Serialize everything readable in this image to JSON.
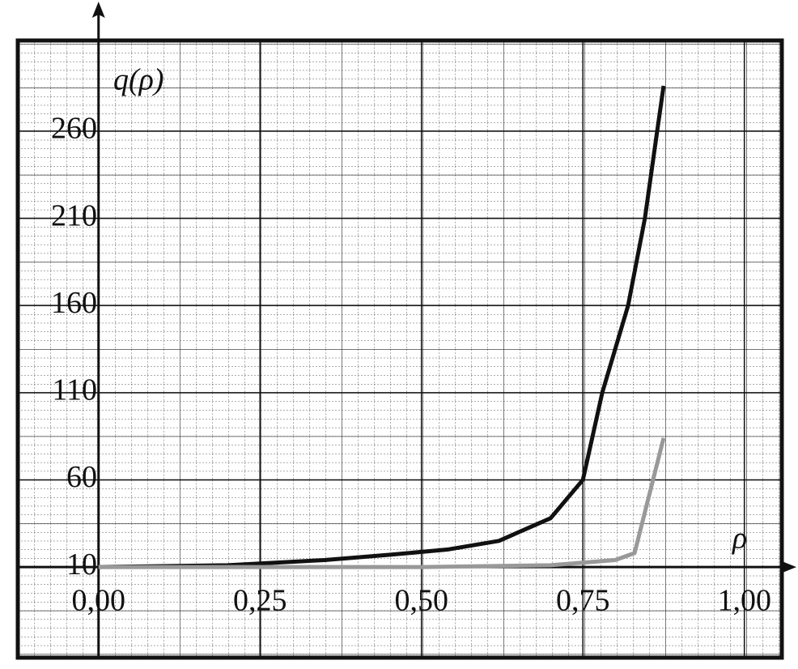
{
  "chart_data": {
    "type": "line",
    "y_label": "q(ρ)",
    "x_label": "ρ",
    "series": [
      {
        "color": "#111111",
        "x": [
          0,
          0.2,
          0.35,
          0.45,
          0.54,
          0.62,
          0.7,
          0.75,
          0.78,
          0.82,
          0.846,
          0.865,
          0.875
        ],
        "values": [
          10,
          11,
          14,
          17,
          20,
          25,
          38,
          60,
          110,
          160,
          210,
          260,
          286
        ]
      },
      {
        "color": "#999999",
        "x": [
          0,
          0.5,
          0.7,
          0.8,
          0.83,
          0.875
        ],
        "values": [
          10,
          10,
          11,
          14,
          18,
          84
        ]
      }
    ],
    "xlim": [
      -0.125,
      1.058
    ],
    "ylim": [
      -42,
      312
    ],
    "xticks": [
      {
        "value": 0,
        "label": "0,00"
      },
      {
        "value": 0.25,
        "label": "0,25"
      },
      {
        "value": 0.5,
        "label": "0,50"
      },
      {
        "value": 0.75,
        "label": "0,75"
      },
      {
        "value": 1,
        "label": "1,00"
      }
    ],
    "yticks": [
      10,
      60,
      110,
      160,
      210,
      260
    ],
    "grid": true
  }
}
